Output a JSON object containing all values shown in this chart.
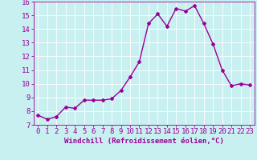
{
  "x": [
    0,
    1,
    2,
    3,
    4,
    5,
    6,
    7,
    8,
    9,
    10,
    11,
    12,
    13,
    14,
    15,
    16,
    17,
    18,
    19,
    20,
    21,
    22,
    23
  ],
  "y": [
    7.7,
    7.4,
    7.6,
    8.3,
    8.2,
    8.8,
    8.8,
    8.8,
    8.9,
    9.5,
    10.5,
    11.6,
    14.4,
    15.1,
    14.2,
    15.5,
    15.3,
    15.7,
    14.4,
    12.9,
    11.0,
    9.85,
    10.0,
    9.9
  ],
  "line_color": "#990099",
  "marker": "D",
  "marker_size": 2,
  "bg_color": "#c8f0f0",
  "grid_color": "#ffffff",
  "xlabel": "Windchill (Refroidissement éolien,°C)",
  "ylim": [
    7,
    16
  ],
  "xlim_min": -0.5,
  "xlim_max": 23.5,
  "yticks": [
    7,
    8,
    9,
    10,
    11,
    12,
    13,
    14,
    15,
    16
  ],
  "xticks": [
    0,
    1,
    2,
    3,
    4,
    5,
    6,
    7,
    8,
    9,
    10,
    11,
    12,
    13,
    14,
    15,
    16,
    17,
    18,
    19,
    20,
    21,
    22,
    23
  ],
  "tick_color": "#990099",
  "label_color": "#990099",
  "xlabel_fontsize": 6.5,
  "tick_fontsize": 6.5,
  "linewidth": 1.0
}
